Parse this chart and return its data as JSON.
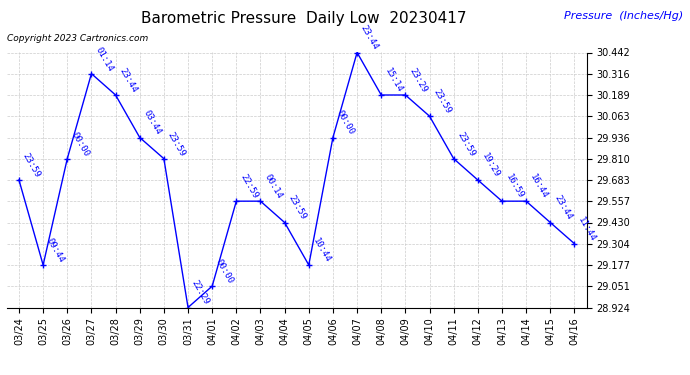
{
  "title": "Barometric Pressure  Daily Low  20230417",
  "ylabel": "Pressure  (Inches/Hg)",
  "copyright": "Copyright 2023 Cartronics.com",
  "line_color": "blue",
  "background_color": "#ffffff",
  "grid_color": "#cccccc",
  "dates": [
    "03/24",
    "03/25",
    "03/26",
    "03/27",
    "03/28",
    "03/29",
    "03/30",
    "03/31",
    "04/01",
    "04/02",
    "04/03",
    "04/04",
    "04/05",
    "04/06",
    "04/07",
    "04/08",
    "04/09",
    "04/10",
    "04/11",
    "04/12",
    "04/13",
    "04/14",
    "04/15",
    "04/16"
  ],
  "values": [
    29.683,
    29.177,
    29.81,
    30.316,
    30.189,
    29.936,
    29.81,
    28.924,
    29.051,
    29.557,
    29.557,
    29.43,
    29.177,
    29.936,
    30.442,
    30.189,
    30.189,
    30.063,
    29.81,
    29.683,
    29.557,
    29.557,
    29.43,
    29.304
  ],
  "time_labels": [
    "23:59",
    "09:44",
    "00:00",
    "01:14",
    "23:44",
    "03:44",
    "23:59",
    "22:29",
    "00:00",
    "22:59",
    "00:14",
    "23:59",
    "10:44",
    "00:00",
    "23:44",
    "15:14",
    "23:29",
    "23:59",
    "23:59",
    "19:29",
    "16:59",
    "16:44",
    "23:44",
    "11:44"
  ],
  "ylim": [
    28.924,
    30.442
  ],
  "yticks": [
    28.924,
    29.051,
    29.177,
    29.304,
    29.43,
    29.557,
    29.683,
    29.81,
    29.936,
    30.063,
    30.189,
    30.316,
    30.442
  ],
  "title_fontsize": 11,
  "label_fontsize": 8,
  "tick_fontsize": 7,
  "annotation_fontsize": 6.5,
  "copyright_fontsize": 6.5
}
